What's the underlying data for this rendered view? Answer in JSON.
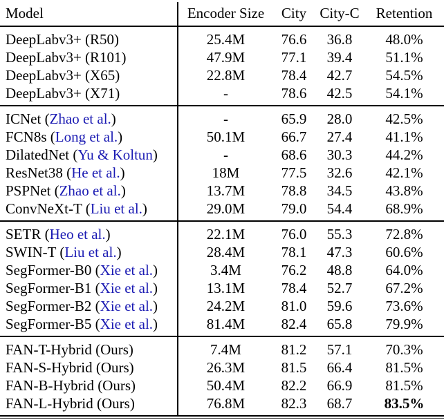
{
  "table": {
    "columns": [
      "Model",
      "Encoder Size",
      "City",
      "City-C",
      "Retention"
    ],
    "colors": {
      "text": "#000000",
      "citation": "#1b1bb3",
      "rule": "#000000"
    },
    "sections": [
      {
        "rows": [
          {
            "model": "DeepLabv3+ (R50)",
            "cite": null,
            "encoder_size": "25.4M",
            "city": "76.6",
            "city_c": "36.8",
            "retention": "48.0%",
            "bold_retention": false
          },
          {
            "model": "DeepLabv3+ (R101)",
            "cite": null,
            "encoder_size": "47.9M",
            "city": "77.1",
            "city_c": "39.4",
            "retention": "51.1%",
            "bold_retention": false
          },
          {
            "model": "DeepLabv3+ (X65)",
            "cite": null,
            "encoder_size": "22.8M",
            "city": "78.4",
            "city_c": "42.7",
            "retention": "54.5%",
            "bold_retention": false
          },
          {
            "model": "DeepLabv3+ (X71)",
            "cite": null,
            "encoder_size": "-",
            "city": "78.6",
            "city_c": "42.5",
            "retention": "54.1%",
            "bold_retention": false
          }
        ]
      },
      {
        "rows": [
          {
            "model": "ICNet",
            "cite": "Zhao et al.",
            "encoder_size": "-",
            "city": "65.9",
            "city_c": "28.0",
            "retention": "42.5%",
            "bold_retention": false
          },
          {
            "model": "FCN8s",
            "cite": "Long et al.",
            "encoder_size": "50.1M",
            "city": "66.7",
            "city_c": "27.4",
            "retention": "41.1%",
            "bold_retention": false
          },
          {
            "model": "DilatedNet",
            "cite": "Yu & Koltun",
            "encoder_size": "-",
            "city": "68.6",
            "city_c": "30.3",
            "retention": "44.2%",
            "bold_retention": false
          },
          {
            "model": "ResNet38",
            "cite": "He et al.",
            "encoder_size": "18M",
            "city": "77.5",
            "city_c": "32.6",
            "retention": "42.1%",
            "bold_retention": false
          },
          {
            "model": "PSPNet",
            "cite": "Zhao et al.",
            "encoder_size": "13.7M",
            "city": "78.8",
            "city_c": "34.5",
            "retention": "43.8%",
            "bold_retention": false
          },
          {
            "model": "ConvNeXt-T",
            "cite": "Liu et al.",
            "encoder_size": "29.0M",
            "city": "79.0",
            "city_c": "54.4",
            "retention": "68.9%",
            "bold_retention": false
          }
        ]
      },
      {
        "rows": [
          {
            "model": "SETR",
            "cite": "Heo et al.",
            "encoder_size": "22.1M",
            "city": "76.0",
            "city_c": "55.3",
            "retention": "72.8%",
            "bold_retention": false
          },
          {
            "model": "SWIN-T",
            "cite": "Liu et al.",
            "encoder_size": "28.4M",
            "city": "78.1",
            "city_c": "47.3",
            "retention": "60.6%",
            "bold_retention": false
          },
          {
            "model": "SegFormer-B0",
            "cite": "Xie et al.",
            "encoder_size": "3.4M",
            "city": "76.2",
            "city_c": "48.8",
            "retention": "64.0%",
            "bold_retention": false
          },
          {
            "model": "SegFormer-B1",
            "cite": "Xie et al.",
            "encoder_size": "13.1M",
            "city": "78.4",
            "city_c": "52.7",
            "retention": "67.2%",
            "bold_retention": false
          },
          {
            "model": "SegFormer-B2",
            "cite": "Xie et al.",
            "encoder_size": "24.2M",
            "city": "81.0",
            "city_c": "59.6",
            "retention": "73.6%",
            "bold_retention": false
          },
          {
            "model": "SegFormer-B5",
            "cite": "Xie et al.",
            "encoder_size": "81.4M",
            "city": "82.4",
            "city_c": "65.8",
            "retention": "79.9%",
            "bold_retention": false
          }
        ]
      },
      {
        "rows": [
          {
            "model": "FAN-T-Hybrid (Ours)",
            "cite": null,
            "encoder_size": "7.4M",
            "city": "81.2",
            "city_c": "57.1",
            "retention": "70.3%",
            "bold_retention": false
          },
          {
            "model": "FAN-S-Hybrid (Ours)",
            "cite": null,
            "encoder_size": "26.3M",
            "city": "81.5",
            "city_c": "66.4",
            "retention": "81.5%",
            "bold_retention": false
          },
          {
            "model": "FAN-B-Hybrid (Ours)",
            "cite": null,
            "encoder_size": "50.4M",
            "city": "82.2",
            "city_c": "66.9",
            "retention": "81.5%",
            "bold_retention": false
          },
          {
            "model": "FAN-L-Hybrid (Ours)",
            "cite": null,
            "encoder_size": "76.8M",
            "city": "82.3",
            "city_c": "68.7",
            "retention": "83.5%",
            "bold_retention": true
          }
        ]
      }
    ]
  }
}
